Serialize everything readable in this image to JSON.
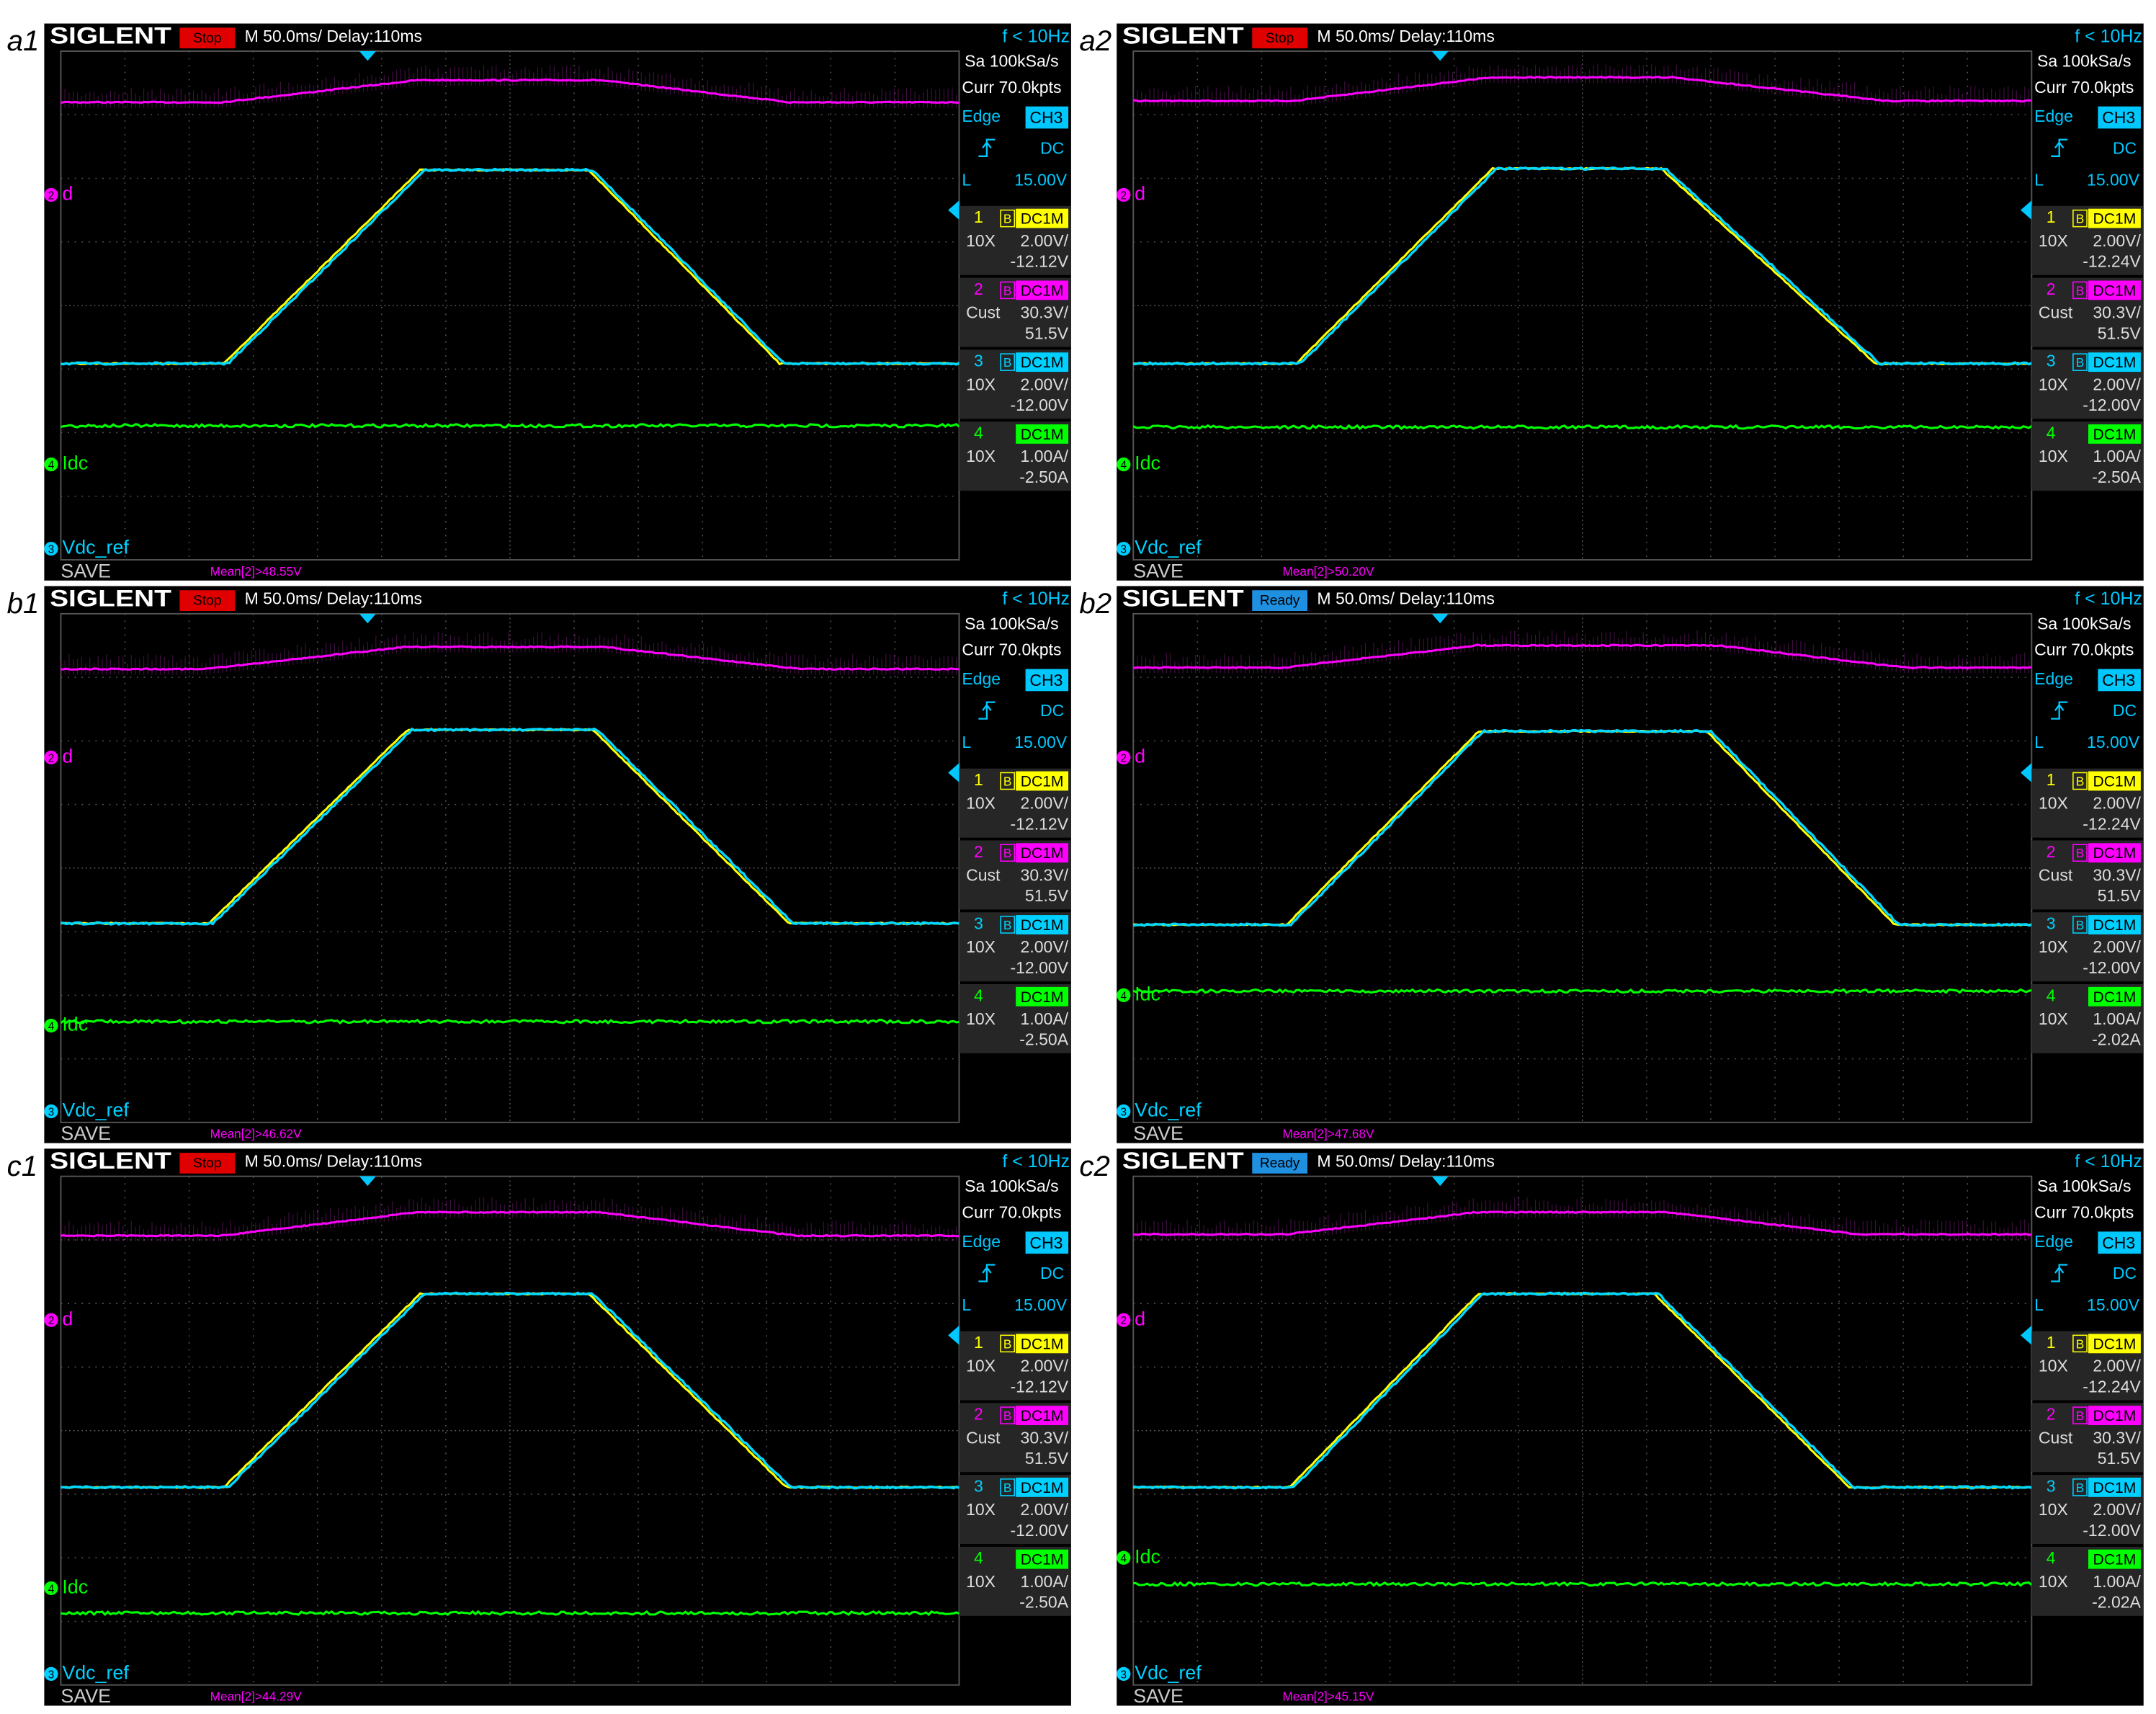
{
  "panels": [
    {
      "label": "a1",
      "brand": "SIGLENT",
      "status": "Stop",
      "status_color": "#e00000",
      "timebase": "M 50.0ms/ Delay:110ms",
      "freq": "f < 10Hz",
      "sample": "Sa 100kSa/s",
      "memory": "Curr 70.0kpts",
      "trigger": {
        "type": "Edge",
        "source": "CH3",
        "coupling": "DC",
        "level_label": "L",
        "level": "15.00V"
      },
      "channels": [
        {
          "num": "1",
          "bw": "B",
          "coupling": "DC1M",
          "probe": "10X",
          "scale": "2.00V/",
          "offset": "-12.12V"
        },
        {
          "num": "2",
          "bw": "B",
          "coupling": "DC1M",
          "probe": "Cust",
          "scale": "30.3V/",
          "offset": "51.5V"
        },
        {
          "num": "3",
          "bw": "B",
          "coupling": "DC1M",
          "probe": "10X",
          "scale": "2.00V/",
          "offset": "-12.00V"
        },
        {
          "num": "4",
          "coupling": "DC1M",
          "probe": "10X",
          "scale": "1.00A/",
          "offset": "-2.50A"
        }
      ],
      "traces": [
        {
          "marker": "2",
          "name": "d"
        },
        {
          "marker": "4",
          "name": "Idc"
        },
        {
          "marker": "3",
          "name": "Vdc_ref"
        }
      ],
      "save": "SAVE",
      "measure": "Mean[2]>48.55V"
    },
    {
      "label": "a2",
      "brand": "SIGLENT",
      "status": "Stop",
      "status_color": "#e00000",
      "timebase": "M 50.0ms/ Delay:110ms",
      "freq": "f < 10Hz",
      "sample": "Sa 100kSa/s",
      "memory": "Curr 70.0kpts",
      "trigger": {
        "type": "Edge",
        "source": "CH3",
        "coupling": "DC",
        "level_label": "L",
        "level": "15.00V"
      },
      "channels": [
        {
          "num": "1",
          "bw": "B",
          "coupling": "DC1M",
          "probe": "10X",
          "scale": "2.00V/",
          "offset": "-12.24V"
        },
        {
          "num": "2",
          "bw": "B",
          "coupling": "DC1M",
          "probe": "Cust",
          "scale": "30.3V/",
          "offset": "51.5V"
        },
        {
          "num": "3",
          "bw": "B",
          "coupling": "DC1M",
          "probe": "10X",
          "scale": "2.00V/",
          "offset": "-12.00V"
        },
        {
          "num": "4",
          "coupling": "DC1M",
          "probe": "10X",
          "scale": "1.00A/",
          "offset": "-2.50A"
        }
      ],
      "traces": [
        {
          "marker": "2",
          "name": "d"
        },
        {
          "marker": "4",
          "name": "Idc"
        },
        {
          "marker": "3",
          "name": "Vdc_ref"
        }
      ],
      "save": "SAVE",
      "measure": "Mean[2]>50.20V"
    },
    {
      "label": "b1",
      "brand": "SIGLENT",
      "status": "Stop",
      "status_color": "#e00000",
      "timebase": "M 50.0ms/ Delay:110ms",
      "freq": "f < 10Hz",
      "sample": "Sa 100kSa/s",
      "memory": "Curr 70.0kpts",
      "trigger": {
        "type": "Edge",
        "source": "CH3",
        "coupling": "DC",
        "level_label": "L",
        "level": "15.00V"
      },
      "channels": [
        {
          "num": "1",
          "bw": "B",
          "coupling": "DC1M",
          "probe": "10X",
          "scale": "2.00V/",
          "offset": "-12.12V"
        },
        {
          "num": "2",
          "bw": "B",
          "coupling": "DC1M",
          "probe": "Cust",
          "scale": "30.3V/",
          "offset": "51.5V"
        },
        {
          "num": "3",
          "bw": "B",
          "coupling": "DC1M",
          "probe": "10X",
          "scale": "2.00V/",
          "offset": "-12.00V"
        },
        {
          "num": "4",
          "coupling": "DC1M",
          "probe": "10X",
          "scale": "1.00A/",
          "offset": "-2.50A"
        }
      ],
      "traces": [
        {
          "marker": "2",
          "name": "d"
        },
        {
          "marker": "4",
          "name": "Idc"
        },
        {
          "marker": "3",
          "name": "Vdc_ref"
        }
      ],
      "save": "SAVE",
      "measure": "Mean[2]>46.62V"
    },
    {
      "label": "b2",
      "brand": "SIGLENT",
      "status": "Ready",
      "status_color": "#1f8fe0",
      "timebase": "M 50.0ms/ Delay:110ms",
      "freq": "f < 10Hz",
      "sample": "Sa 100kSa/s",
      "memory": "Curr 70.0kpts",
      "trigger": {
        "type": "Edge",
        "source": "CH3",
        "coupling": "DC",
        "level_label": "L",
        "level": "15.00V"
      },
      "channels": [
        {
          "num": "1",
          "bw": "B",
          "coupling": "DC1M",
          "probe": "10X",
          "scale": "2.00V/",
          "offset": "-12.24V"
        },
        {
          "num": "2",
          "bw": "B",
          "coupling": "DC1M",
          "probe": "Cust",
          "scale": "30.3V/",
          "offset": "51.5V"
        },
        {
          "num": "3",
          "bw": "B",
          "coupling": "DC1M",
          "probe": "10X",
          "scale": "2.00V/",
          "offset": "-12.00V"
        },
        {
          "num": "4",
          "coupling": "DC1M",
          "probe": "10X",
          "scale": "1.00A/",
          "offset": "-2.02A"
        }
      ],
      "traces": [
        {
          "marker": "2",
          "name": "d"
        },
        {
          "marker": "4",
          "name": "Idc"
        },
        {
          "marker": "3",
          "name": "Vdc_ref"
        }
      ],
      "save": "SAVE",
      "measure": "Mean[2]>47.68V"
    },
    {
      "label": "c1",
      "brand": "SIGLENT",
      "status": "Stop",
      "status_color": "#e00000",
      "timebase": "M 50.0ms/ Delay:110ms",
      "freq": "f < 10Hz",
      "sample": "Sa 100kSa/s",
      "memory": "Curr 70.0kpts",
      "trigger": {
        "type": "Edge",
        "source": "CH3",
        "coupling": "DC",
        "level_label": "L",
        "level": "15.00V"
      },
      "channels": [
        {
          "num": "1",
          "bw": "B",
          "coupling": "DC1M",
          "probe": "10X",
          "scale": "2.00V/",
          "offset": "-12.12V"
        },
        {
          "num": "2",
          "bw": "B",
          "coupling": "DC1M",
          "probe": "Cust",
          "scale": "30.3V/",
          "offset": "51.5V"
        },
        {
          "num": "3",
          "bw": "B",
          "coupling": "DC1M",
          "probe": "10X",
          "scale": "2.00V/",
          "offset": "-12.00V"
        },
        {
          "num": "4",
          "coupling": "DC1M",
          "probe": "10X",
          "scale": "1.00A/",
          "offset": "-2.50A"
        }
      ],
      "traces": [
        {
          "marker": "2",
          "name": "d"
        },
        {
          "marker": "4",
          "name": "Idc"
        },
        {
          "marker": "3",
          "name": "Vdc_ref"
        }
      ],
      "save": "SAVE",
      "measure": "Mean[2]>44.29V"
    },
    {
      "label": "c2",
      "brand": "SIGLENT",
      "status": "Ready",
      "status_color": "#1f8fe0",
      "timebase": "M 50.0ms/ Delay:110ms",
      "freq": "f < 10Hz",
      "sample": "Sa 100kSa/s",
      "memory": "Curr 70.0kpts",
      "trigger": {
        "type": "Edge",
        "source": "CH3",
        "coupling": "DC",
        "level_label": "L",
        "level": "15.00V"
      },
      "channels": [
        {
          "num": "1",
          "bw": "B",
          "coupling": "DC1M",
          "probe": "10X",
          "scale": "2.00V/",
          "offset": "-12.24V"
        },
        {
          "num": "2",
          "bw": "B",
          "coupling": "DC1M",
          "probe": "Cust",
          "scale": "30.3V/",
          "offset": "51.5V"
        },
        {
          "num": "3",
          "bw": "B",
          "coupling": "DC1M",
          "probe": "10X",
          "scale": "2.00V/",
          "offset": "-12.00V"
        },
        {
          "num": "4",
          "coupling": "DC1M",
          "probe": "10X",
          "scale": "1.00A/",
          "offset": "-2.02A"
        }
      ],
      "traces": [
        {
          "marker": "2",
          "name": "d"
        },
        {
          "marker": "4",
          "name": "Idc"
        },
        {
          "marker": "3",
          "name": "Vdc_ref"
        }
      ],
      "save": "SAVE",
      "measure": "Mean[2]>45.15V"
    }
  ]
}
